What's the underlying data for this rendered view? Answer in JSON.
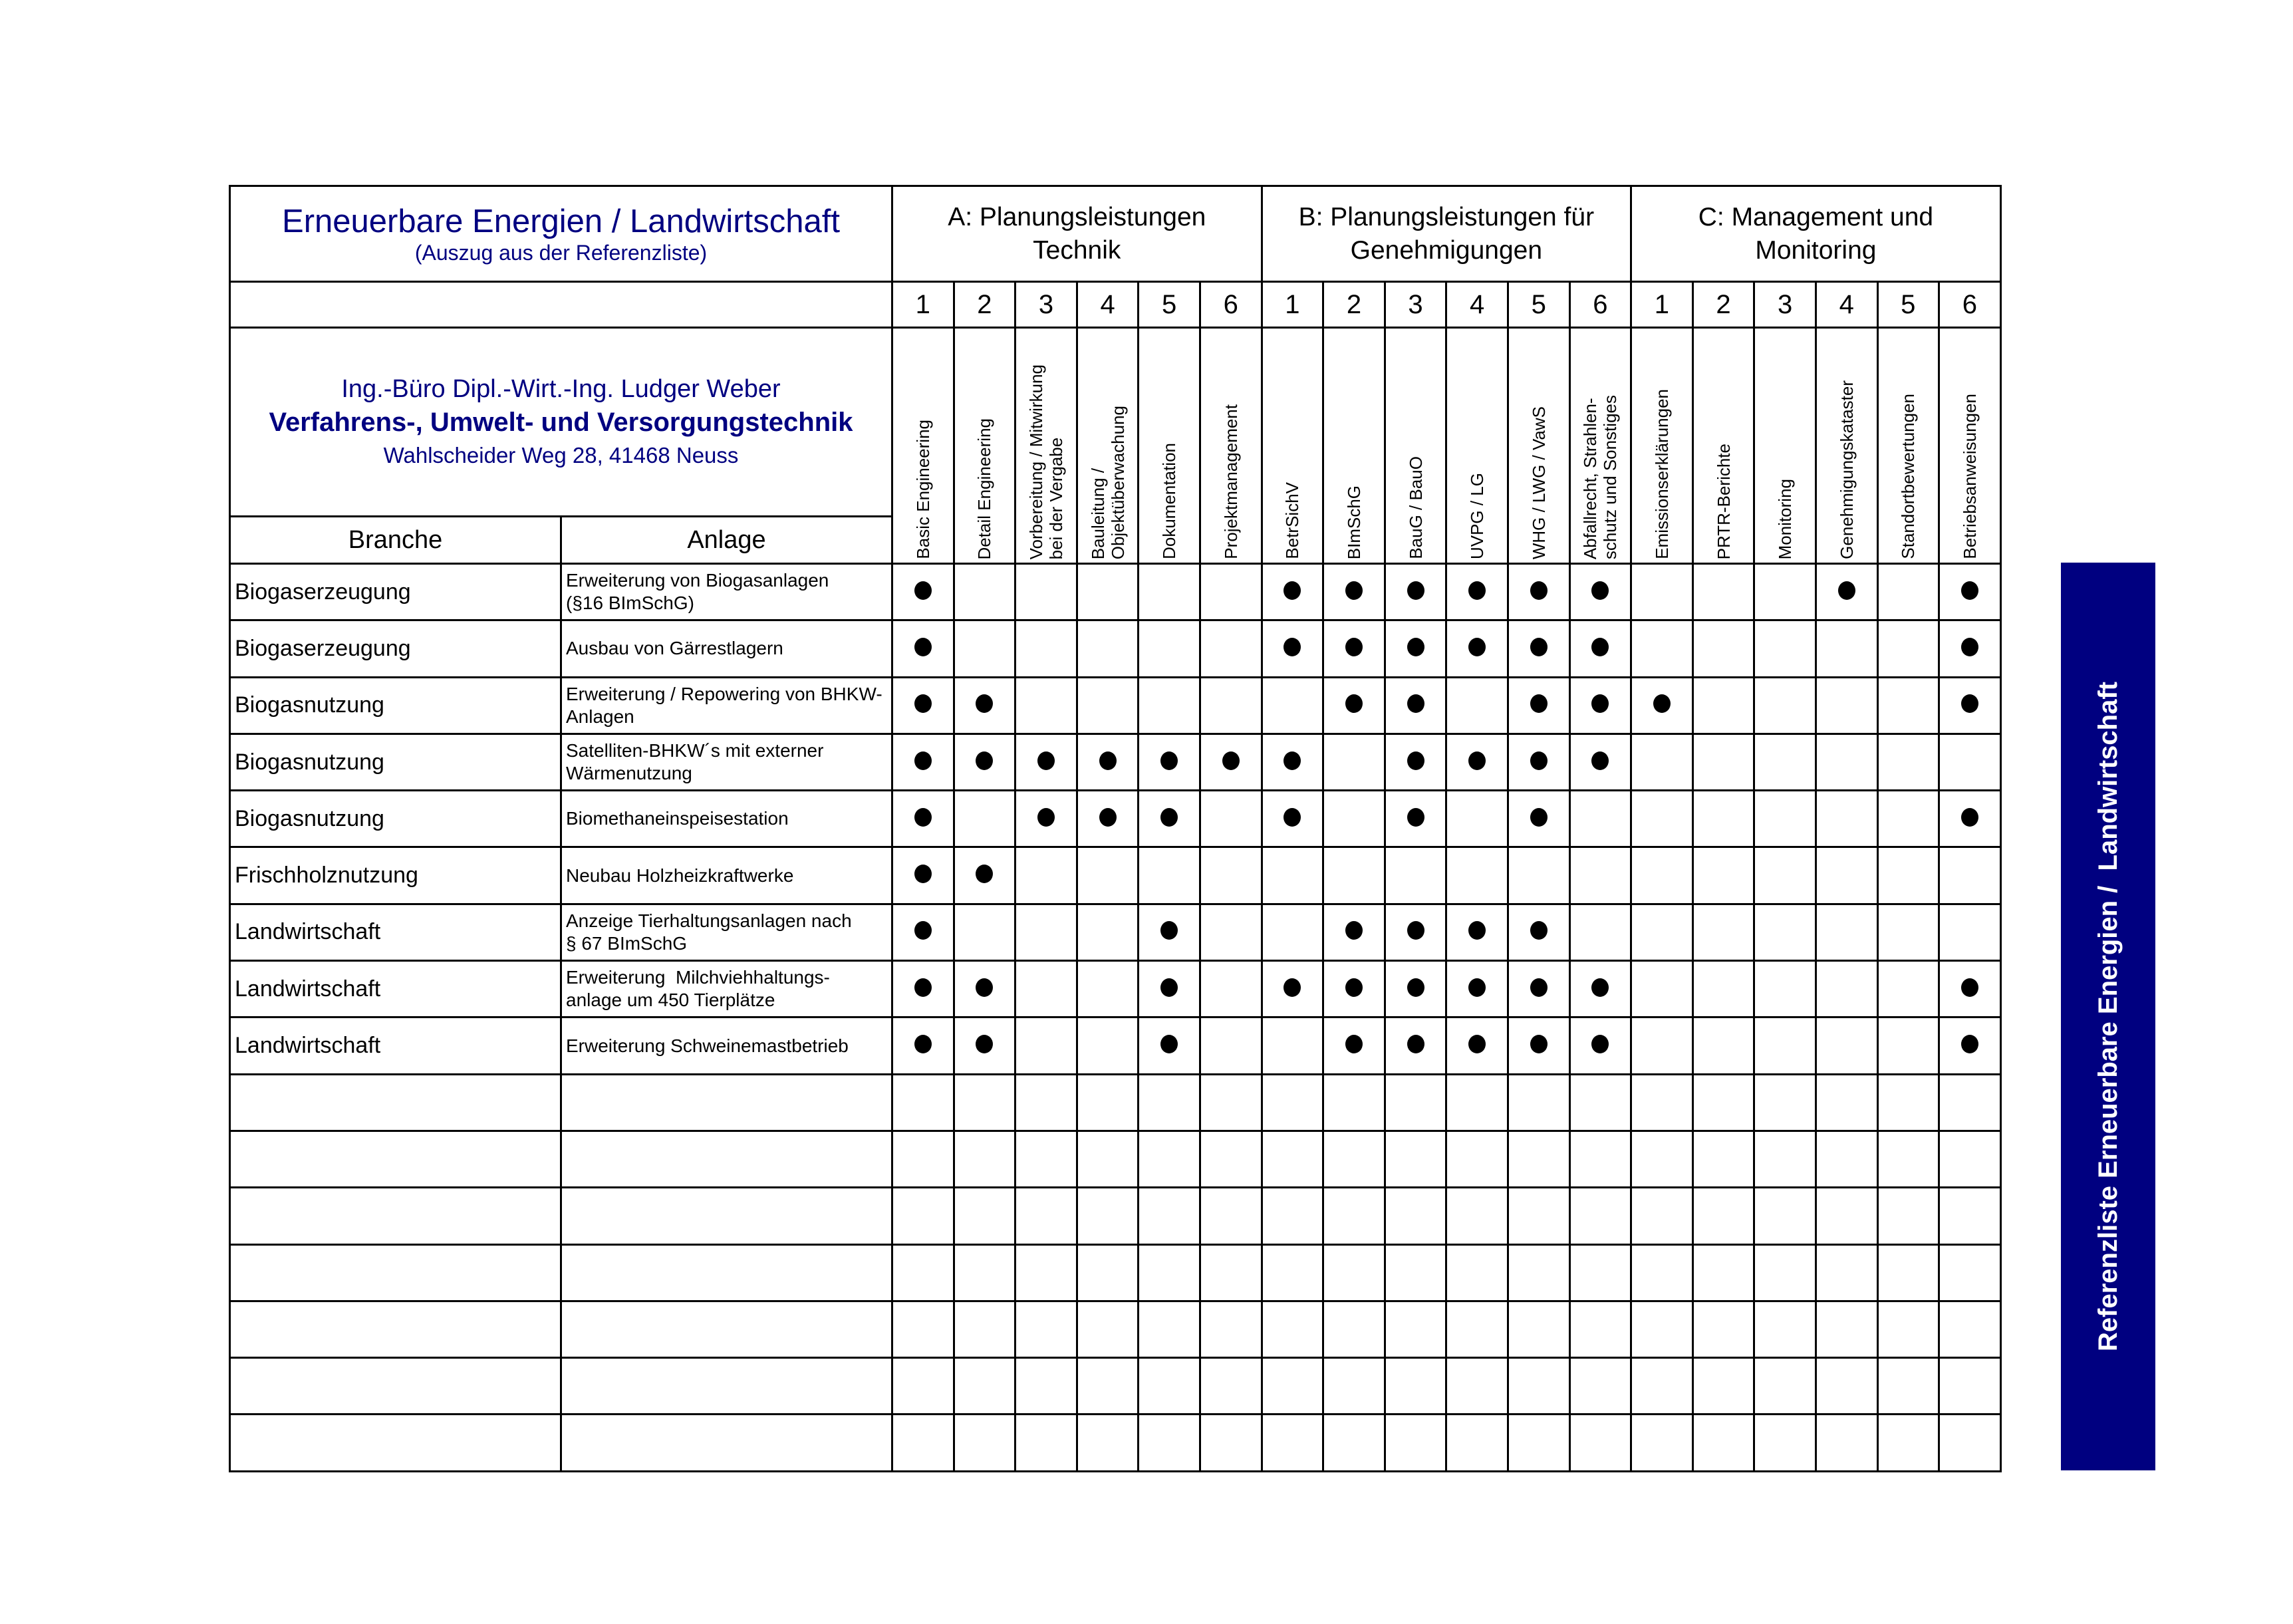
{
  "header": {
    "title": "Erneuerbare Energien / Landwirtschaft",
    "subtitle": "(Auszug aus der Referenzliste)",
    "groups": [
      {
        "label": "A: Planungsleistungen\nTechnik"
      },
      {
        "label": "B: Planungsleistungen für\nGenehmigungen"
      },
      {
        "label": "C: Management und\nMonitoring"
      }
    ],
    "numbers": [
      "1",
      "2",
      "3",
      "4",
      "5",
      "6",
      "1",
      "2",
      "3",
      "4",
      "5",
      "6",
      "1",
      "2",
      "3",
      "4",
      "5",
      "6"
    ]
  },
  "company": {
    "line1": "Ing.-Büro Dipl.-Wirt.-Ing. Ludger Weber",
    "line2": "Verfahrens-, Umwelt- und Versorgungstechnik",
    "line3": "Wahlscheider Weg 28, 41468 Neuss"
  },
  "columns": {
    "branche": "Branche",
    "anlage": "Anlage",
    "services": [
      "Basic Engineering",
      "Detail Engineering",
      "Vorbereitung / Mitwirkung\nbei der Vergabe",
      "Bauleitung /\nObjektüberwachung",
      "Dokumentation",
      "Projektmanagement",
      "BetrSichV",
      "BImSchG",
      "BauG / BauO",
      "UVPG / LG",
      "WHG / LWG / VawS",
      "Abfallrecht, Strahlen-\nschutz und Sonstiges",
      "Emissionserklärungen",
      "PRTR-Berichte",
      "Monitoring",
      "Genehmigungskataster",
      "Standortbewertungen",
      "Betriebsanweisungen"
    ]
  },
  "rows": [
    {
      "branche": "Biogaserzeugung",
      "anlage": "Erweiterung von Biogasanlagen\n(§16 BImSchG)",
      "marks": [
        1,
        0,
        0,
        0,
        0,
        0,
        1,
        1,
        1,
        1,
        1,
        1,
        0,
        0,
        0,
        1,
        0,
        1
      ]
    },
    {
      "branche": "Biogaserzeugung",
      "anlage": "Ausbau von Gärrestlagern",
      "marks": [
        1,
        0,
        0,
        0,
        0,
        0,
        1,
        1,
        1,
        1,
        1,
        1,
        0,
        0,
        0,
        0,
        0,
        1
      ]
    },
    {
      "branche": "Biogasnutzung",
      "anlage": "Erweiterung / Repowering von BHKW-\nAnlagen",
      "marks": [
        1,
        1,
        0,
        0,
        0,
        0,
        0,
        1,
        1,
        0,
        1,
        1,
        1,
        0,
        0,
        0,
        0,
        1
      ]
    },
    {
      "branche": "Biogasnutzung",
      "anlage": "Satelliten-BHKW´s mit externer\nWärmenutzung",
      "marks": [
        1,
        1,
        1,
        1,
        1,
        1,
        1,
        0,
        1,
        1,
        1,
        1,
        0,
        0,
        0,
        0,
        0,
        0
      ]
    },
    {
      "branche": "Biogasnutzung",
      "anlage": "Biomethaneinspeisestation",
      "marks": [
        1,
        0,
        1,
        1,
        1,
        0,
        1,
        0,
        1,
        0,
        1,
        0,
        0,
        0,
        0,
        0,
        0,
        1
      ]
    },
    {
      "branche": "Frischholznutzung",
      "anlage": "Neubau Holzheizkraftwerke",
      "marks": [
        1,
        1,
        0,
        0,
        0,
        0,
        0,
        0,
        0,
        0,
        0,
        0,
        0,
        0,
        0,
        0,
        0,
        0
      ]
    },
    {
      "branche": "Landwirtschaft",
      "anlage": "Anzeige Tierhaltungsanlagen nach\n§ 67 BImSchG",
      "marks": [
        1,
        0,
        0,
        0,
        1,
        0,
        0,
        1,
        1,
        1,
        1,
        0,
        0,
        0,
        0,
        0,
        0,
        0
      ]
    },
    {
      "branche": "Landwirtschaft",
      "anlage": "Erweiterung  Milchviehhaltungs-\nanlage um 450 Tierplätze",
      "marks": [
        1,
        1,
        0,
        0,
        1,
        0,
        1,
        1,
        1,
        1,
        1,
        1,
        0,
        0,
        0,
        0,
        0,
        1
      ]
    },
    {
      "branche": "Landwirtschaft",
      "anlage": "Erweiterung Schweinemastbetrieb",
      "marks": [
        1,
        1,
        0,
        0,
        1,
        0,
        0,
        1,
        1,
        1,
        1,
        1,
        0,
        0,
        0,
        0,
        0,
        1
      ]
    },
    {
      "branche": "",
      "anlage": "",
      "marks": [
        0,
        0,
        0,
        0,
        0,
        0,
        0,
        0,
        0,
        0,
        0,
        0,
        0,
        0,
        0,
        0,
        0,
        0
      ]
    },
    {
      "branche": "",
      "anlage": "",
      "marks": [
        0,
        0,
        0,
        0,
        0,
        0,
        0,
        0,
        0,
        0,
        0,
        0,
        0,
        0,
        0,
        0,
        0,
        0
      ]
    },
    {
      "branche": "",
      "anlage": "",
      "marks": [
        0,
        0,
        0,
        0,
        0,
        0,
        0,
        0,
        0,
        0,
        0,
        0,
        0,
        0,
        0,
        0,
        0,
        0
      ]
    },
    {
      "branche": "",
      "anlage": "",
      "marks": [
        0,
        0,
        0,
        0,
        0,
        0,
        0,
        0,
        0,
        0,
        0,
        0,
        0,
        0,
        0,
        0,
        0,
        0
      ]
    },
    {
      "branche": "",
      "anlage": "",
      "marks": [
        0,
        0,
        0,
        0,
        0,
        0,
        0,
        0,
        0,
        0,
        0,
        0,
        0,
        0,
        0,
        0,
        0,
        0
      ]
    },
    {
      "branche": "",
      "anlage": "",
      "marks": [
        0,
        0,
        0,
        0,
        0,
        0,
        0,
        0,
        0,
        0,
        0,
        0,
        0,
        0,
        0,
        0,
        0,
        0
      ]
    },
    {
      "branche": "",
      "anlage": "",
      "marks": [
        0,
        0,
        0,
        0,
        0,
        0,
        0,
        0,
        0,
        0,
        0,
        0,
        0,
        0,
        0,
        0,
        0,
        0
      ]
    }
  ],
  "banner": {
    "text": "Referenzliste Erneuerbare Energien /  Landwirtschaft",
    "color": "#000080"
  },
  "colors": {
    "accent": "#000080",
    "mark": "#000000"
  }
}
